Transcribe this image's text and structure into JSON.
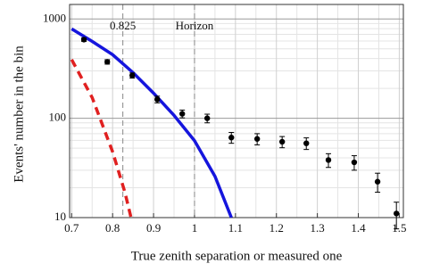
{
  "chart_data": {
    "type": "scatter",
    "x_label": "True zenith separation or measured one",
    "y_label": "Events' number in the bin",
    "xlim": [
      0.695,
      1.51
    ],
    "xticks": [
      0.7,
      0.8,
      0.9,
      1,
      1.1,
      1.2,
      1.3,
      1.4,
      1.5
    ],
    "ylim": [
      10,
      1400
    ],
    "yticks": [
      10,
      100,
      1000
    ],
    "log_y": true,
    "grid": true,
    "points": {
      "color": "#000000",
      "x": [
        0.73,
        0.787,
        0.848,
        0.909,
        0.97,
        1.031,
        1.09,
        1.153,
        1.214,
        1.273,
        1.327,
        1.39,
        1.447,
        1.493
      ],
      "values": [
        620,
        370,
        270,
        155,
        111,
        100,
        64,
        62,
        58,
        56,
        38,
        36,
        23,
        11
      ],
      "errors": [
        25,
        19,
        16,
        12,
        10,
        10,
        8,
        8,
        7.5,
        7.5,
        6,
        6,
        5,
        3.3
      ]
    },
    "curves": [
      {
        "color": "#1515dd",
        "dashed": false,
        "x": [
          0.7,
          0.75,
          0.8,
          0.85,
          0.9,
          0.95,
          1.0,
          1.05,
          1.09
        ],
        "values": [
          794,
          595,
          437,
          288,
          179,
          107,
          59.5,
          26,
          10
        ]
      },
      {
        "color": "#e02020",
        "dashed": true,
        "x": [
          0.7,
          0.75,
          0.8,
          0.83,
          0.845
        ],
        "values": [
          390,
          162,
          46,
          18,
          10
        ]
      }
    ],
    "vlines": [
      {
        "x": 0.825,
        "label": "0.825"
      },
      {
        "x": 1,
        "label": "Horizon"
      }
    ]
  }
}
